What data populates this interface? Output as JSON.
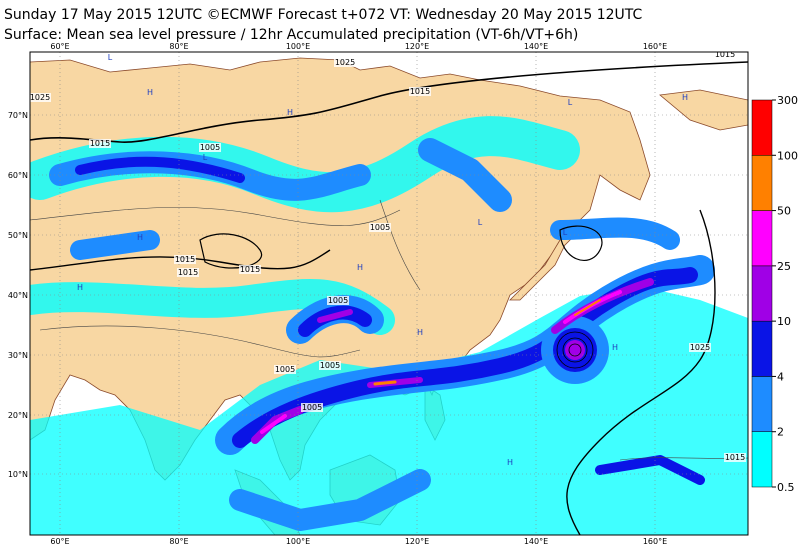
{
  "header": {
    "line1": "Sunday 17 May 2015 12UTC ©ECMWF Forecast t+072 VT: Wednesday 20 May 2015 12UTC",
    "line2": "Surface: Mean sea level pressure / 12hr Accumulated precipitation (VT-6h/VT+6h)"
  },
  "map": {
    "lon_labels": [
      "60°E",
      "80°E",
      "100°E",
      "120°E",
      "140°E",
      "160°E"
    ],
    "lat_labels": [
      "70°N",
      "60°N",
      "50°N",
      "40°N",
      "30°N",
      "20°N",
      "10°N"
    ],
    "isobar_labels": [
      "1025",
      "1025",
      "1015",
      "1015",
      "1005",
      "1005",
      "1015",
      "1015",
      "1015",
      "1005",
      "1005",
      "1005",
      "1015",
      "1025",
      "1005",
      "1015"
    ],
    "pressure_centers": [
      "L",
      "L",
      "H",
      "H",
      "H",
      "H",
      "L",
      "H",
      "H",
      "L",
      "H",
      "H",
      "L",
      "H"
    ]
  },
  "colorbar": {
    "levels": [
      0.5,
      2,
      4,
      10,
      25,
      50,
      100,
      300
    ],
    "colors": [
      "#00ffff",
      "#1e8cff",
      "#0a14e6",
      "#a000e6",
      "#ff00ff",
      "#ff8000",
      "#ff0000"
    ]
  }
}
